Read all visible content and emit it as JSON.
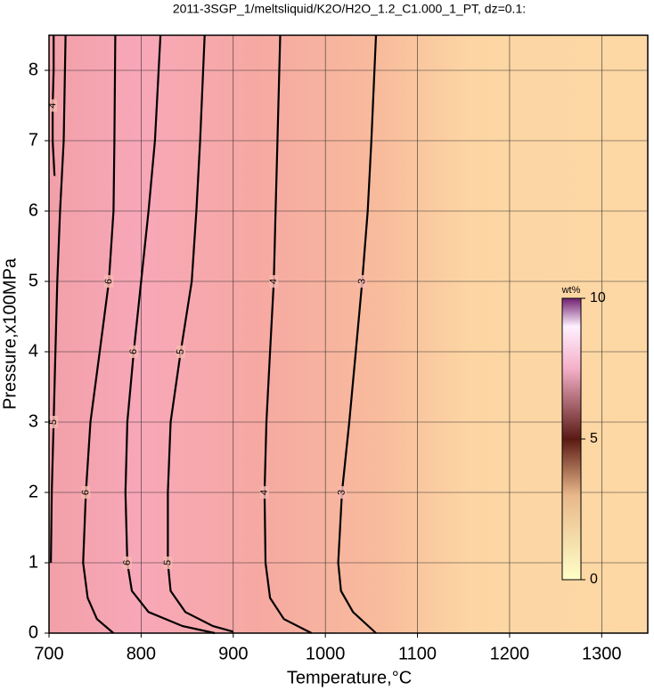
{
  "chart_data": {
    "type": "contour",
    "title": "2011-3SGP_1/meltsliquid/K2O/H2O_1.2_C1.000_1_PT, dz=0.1:",
    "xlabel": "Temperature,°C",
    "ylabel": "Pressure,x100MPa",
    "xlim": [
      700,
      1350
    ],
    "ylim": [
      0,
      8.5
    ],
    "xticks": [
      700,
      800,
      900,
      1000,
      1100,
      1200,
      1300
    ],
    "yticks": [
      0,
      1,
      2,
      3,
      4,
      5,
      6,
      7,
      8
    ],
    "grid": true,
    "colorbar_label": "wt%",
    "zlim": [
      0,
      10
    ],
    "zticks": [
      0,
      5,
      10
    ],
    "contours": [
      {
        "level": 6,
        "y": [
          0,
          0.2,
          0.5,
          1,
          2,
          3,
          4,
          5,
          6,
          7,
          8.5
        ],
        "x": [
          770,
          752,
          742,
          737,
          740,
          745,
          755,
          765,
          770,
          771,
          772
        ]
      },
      {
        "level": 6,
        "y": [
          0,
          0.1,
          0.3,
          0.6,
          1,
          2,
          3,
          4,
          5,
          6,
          7,
          8.5
        ],
        "x": [
          880,
          845,
          808,
          790,
          785,
          783,
          785,
          792,
          800,
          808,
          815,
          821
        ]
      },
      {
        "level": 5,
        "y": [
          0.02,
          0.1,
          0.3,
          0.6,
          1,
          2,
          3,
          4,
          5,
          6,
          7,
          8.5
        ],
        "x": [
          900,
          878,
          848,
          832,
          829,
          829,
          832,
          843,
          855,
          860,
          864,
          869
        ]
      },
      {
        "level": 4,
        "y": [
          0,
          0.2,
          0.5,
          1,
          2,
          3,
          4,
          5,
          6,
          7,
          8.5
        ],
        "x": [
          985,
          955,
          940,
          935,
          934,
          936,
          940,
          944,
          946,
          948,
          951
        ]
      },
      {
        "level": 3,
        "y": [
          0,
          0.3,
          0.6,
          1,
          2,
          3,
          4,
          5,
          6,
          7,
          8.5
        ],
        "x": [
          1055,
          1030,
          1017,
          1014,
          1018,
          1026,
          1033,
          1040,
          1046,
          1050,
          1055
        ]
      },
      {
        "level": 5,
        "y": [
          1,
          2,
          3,
          4,
          5,
          6,
          7,
          8.5
        ],
        "x": [
          702,
          703,
          705,
          707,
          709,
          712,
          716,
          718
        ]
      },
      {
        "level": 4,
        "y": [
          6.5,
          7,
          7.5,
          8,
          8.5
        ],
        "x": [
          706,
          704,
          704,
          705,
          705
        ]
      }
    ]
  }
}
